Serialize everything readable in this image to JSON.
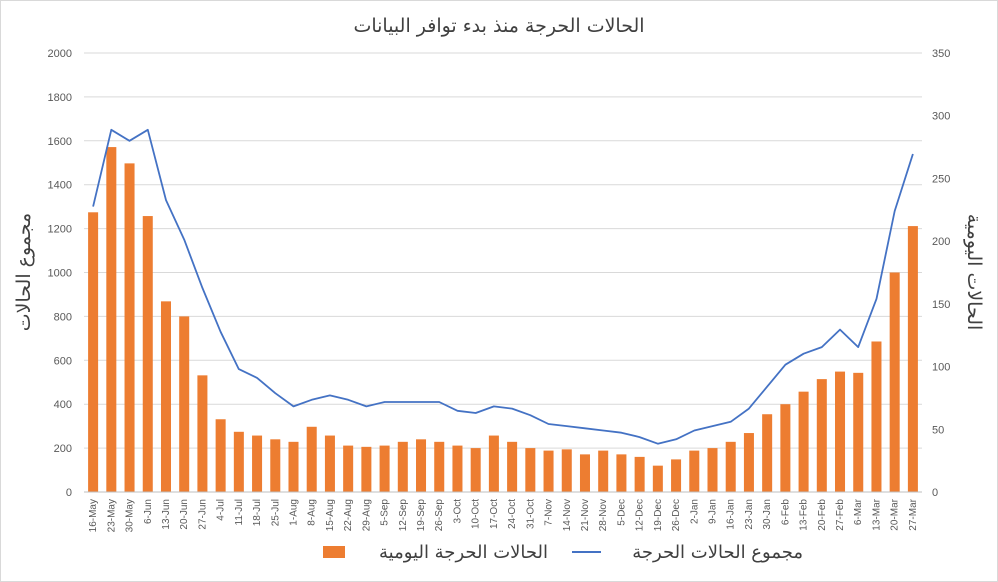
{
  "chart_data": {
    "type": "bar",
    "title": "الحالات الحرجة منذ بدء توافر البيانات",
    "ylabel_left": "مجموع الحالات",
    "ylabel_right": "الحالات اليومية",
    "ylim_left": [
      0,
      2000
    ],
    "ylim_right": [
      0,
      350
    ],
    "yticks_left": [
      0,
      200,
      400,
      600,
      800,
      1000,
      1200,
      1400,
      1600,
      1800,
      2000
    ],
    "yticks_right": [
      0,
      50,
      100,
      150,
      200,
      250,
      300,
      350
    ],
    "x_tick_labels": [
      "16-May",
      "23-May",
      "30-May",
      "6-Jun",
      "13-Jun",
      "20-Jun",
      "27-Jun",
      "4-Jul",
      "11-Jul",
      "18-Jul",
      "25-Jul",
      "1-Aug",
      "8-Aug",
      "15-Aug",
      "22-Aug",
      "29-Aug",
      "5-Sep",
      "12-Sep",
      "19-Sep",
      "26-Sep",
      "3-Oct",
      "10-Oct",
      "17-Oct",
      "24-Oct",
      "31-Oct",
      "7-Nov",
      "14-Nov",
      "21-Nov",
      "28-Nov",
      "5-Dec",
      "12-Dec",
      "19-Dec",
      "26-Dec",
      "2-Jan",
      "9-Jan",
      "16-Jan",
      "23-Jan",
      "30-Jan",
      "6-Feb",
      "13-Feb",
      "20-Feb",
      "27-Feb",
      "6-Mar",
      "13-Mar",
      "20-Mar",
      "27-Mar"
    ],
    "colors": {
      "bars": "#ED7D31",
      "line": "#4472C4"
    },
    "legend_position": "bottom",
    "series": [
      {
        "name": "الحالات الحرجة اليومية",
        "type": "bar",
        "axis": "right",
        "x_dates": [
          "16-May",
          "23-May",
          "30-May",
          "6-Jun",
          "13-Jun",
          "20-Jun",
          "27-Jun",
          "4-Jul",
          "11-Jul",
          "18-Jul",
          "25-Jul",
          "1-Aug",
          "8-Aug",
          "15-Aug",
          "22-Aug",
          "29-Aug",
          "5-Sep",
          "12-Sep",
          "19-Sep",
          "26-Sep",
          "3-Oct",
          "10-Oct",
          "17-Oct",
          "24-Oct",
          "31-Oct",
          "7-Nov",
          "14-Nov",
          "21-Nov",
          "28-Nov",
          "5-Dec",
          "12-Dec",
          "19-Dec",
          "26-Dec",
          "2-Jan",
          "9-Jan",
          "16-Jan",
          "23-Jan",
          "30-Jan",
          "6-Feb",
          "13-Feb",
          "20-Feb",
          "27-Feb",
          "6-Mar",
          "13-Mar",
          "20-Mar",
          "27-Mar"
        ],
        "values": [
          223,
          275,
          262,
          220,
          152,
          140,
          93,
          58,
          48,
          45,
          42,
          40,
          52,
          45,
          37,
          36,
          37,
          40,
          42,
          40,
          37,
          35,
          45,
          40,
          35,
          33,
          34,
          30,
          33,
          30,
          28,
          21,
          26,
          33,
          35,
          40,
          47,
          62,
          70,
          80,
          90,
          96,
          95,
          120,
          175,
          212
        ]
      },
      {
        "name": "مجموع الحالات الحرجة",
        "type": "line",
        "axis": "left",
        "x_dates": [
          "16-May",
          "23-May",
          "30-May",
          "6-Jun",
          "13-Jun",
          "20-Jun",
          "27-Jun",
          "4-Jul",
          "11-Jul",
          "18-Jul",
          "25-Jul",
          "1-Aug",
          "8-Aug",
          "15-Aug",
          "22-Aug",
          "29-Aug",
          "5-Sep",
          "12-Sep",
          "19-Sep",
          "26-Sep",
          "3-Oct",
          "10-Oct",
          "17-Oct",
          "24-Oct",
          "31-Oct",
          "7-Nov",
          "14-Nov",
          "21-Nov",
          "28-Nov",
          "5-Dec",
          "12-Dec",
          "19-Dec",
          "26-Dec",
          "2-Jan",
          "9-Jan",
          "16-Jan",
          "23-Jan",
          "30-Jan",
          "6-Feb",
          "13-Feb",
          "20-Feb",
          "27-Feb",
          "6-Mar",
          "13-Mar",
          "20-Mar",
          "27-Mar"
        ],
        "values": [
          1300,
          1650,
          1600,
          1650,
          1330,
          1150,
          930,
          730,
          560,
          520,
          450,
          390,
          420,
          440,
          420,
          390,
          410,
          410,
          410,
          410,
          370,
          360,
          390,
          380,
          350,
          310,
          300,
          290,
          280,
          270,
          250,
          220,
          240,
          280,
          300,
          320,
          380,
          480,
          580,
          630,
          660,
          740,
          660,
          880,
          1280,
          1540
        ]
      }
    ]
  }
}
